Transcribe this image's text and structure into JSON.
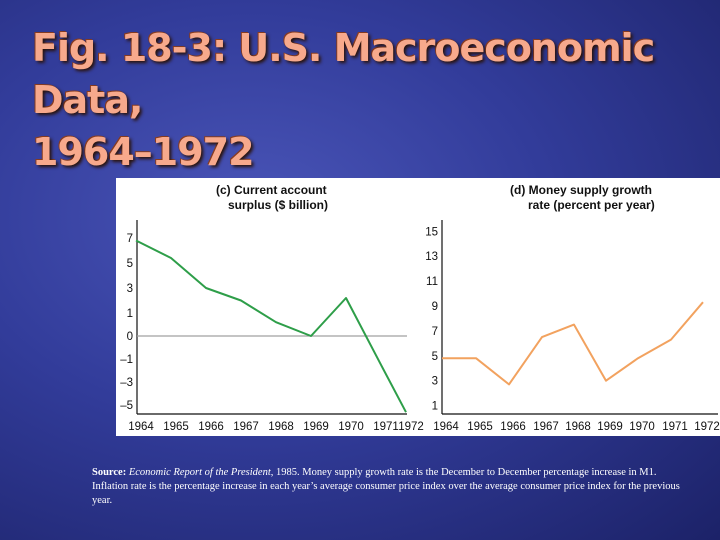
{
  "slide": {
    "title_line1": "Fig. 18-3: U.S. Macroeconomic Data,",
    "title_line2": "1964–1972"
  },
  "source": {
    "label": "Source:",
    "publication": "Economic Report of the President",
    "rest": ", 1985. Money supply growth rate is the December to December percentage increase in M1. Inflation rate is the percentage increase in each year’s average consumer price index over the average consumer price index for the previous year."
  },
  "colors": {
    "current_account_line": "#2e9e49",
    "money_supply_line": "#f2a25f",
    "zero_line": "#a0a0a0",
    "accent_title": "#f7a98c"
  },
  "chart_data": [
    {
      "type": "line",
      "panel": "(c)",
      "title_line1": "(c) Current account",
      "title_line2": "surplus ($ billion)",
      "x": [
        "1964",
        "1965",
        "1966",
        "1967",
        "1968",
        "1969",
        "1970",
        "1971",
        "1972"
      ],
      "y": [
        6.8,
        5.4,
        3.0,
        2.0,
        0.6,
        0.0,
        2.2,
        -1.5,
        -5.8
      ],
      "yticks": [
        "7",
        "5",
        "3",
        "1",
        "0",
        "–1",
        "–3",
        "–5"
      ],
      "ylim": [
        -6,
        8
      ],
      "reference_line": 0,
      "grid": false,
      "legend": "none"
    },
    {
      "type": "line",
      "panel": "(d)",
      "title_line1": "(d) Money supply growth",
      "title_line2": "rate (percent per year)",
      "x": [
        "1964",
        "1965",
        "1966",
        "1967",
        "1968",
        "1969",
        "1970",
        "1971",
        "1972"
      ],
      "y": [
        4.8,
        4.8,
        2.7,
        6.5,
        7.5,
        3.0,
        4.8,
        6.3,
        9.3
      ],
      "yticks": [
        "15",
        "13",
        "11",
        "9",
        "7",
        "5",
        "3",
        "1"
      ],
      "ylim": [
        0,
        16
      ],
      "grid": false,
      "legend": "none"
    }
  ]
}
